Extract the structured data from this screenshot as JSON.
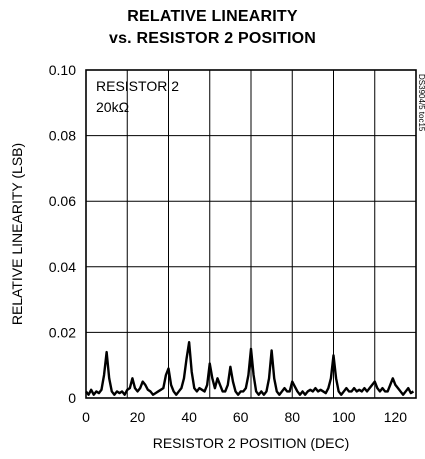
{
  "chart_data": {
    "type": "line",
    "title_line1": "RELATIVE LINEARITY",
    "title_line2": "vs. RESISTOR 2 POSITION",
    "xlabel": "RESISTOR 2 POSITION (DEC)",
    "ylabel": "RELATIVE LINEARITY (LSB)",
    "annotation_line1": "RESISTOR 2",
    "annotation_line2": "20kΩ",
    "figure_id": "DS3904/5 toc15",
    "xlim": [
      0,
      128
    ],
    "ylim": [
      0,
      0.1
    ],
    "x_ticks": [
      0,
      20,
      40,
      60,
      80,
      100,
      120
    ],
    "x_tick_labels": [
      "0",
      "20",
      "40",
      "60",
      "80",
      "100",
      "120"
    ],
    "y_ticks": [
      0,
      0.02,
      0.04,
      0.06,
      0.08,
      0.1
    ],
    "y_tick_labels": [
      "0",
      "0.02",
      "0.04",
      "0.06",
      "0.08",
      "0.10"
    ],
    "grid": true,
    "series_color": "#000000",
    "x": [
      0,
      1,
      2,
      3,
      4,
      5,
      6,
      7,
      8,
      9,
      10,
      11,
      12,
      13,
      14,
      15,
      16,
      17,
      18,
      19,
      20,
      21,
      22,
      23,
      24,
      25,
      26,
      27,
      28,
      29,
      30,
      31,
      32,
      33,
      34,
      35,
      36,
      37,
      38,
      39,
      40,
      41,
      42,
      43,
      44,
      45,
      46,
      47,
      48,
      49,
      50,
      51,
      52,
      53,
      54,
      55,
      56,
      57,
      58,
      59,
      60,
      61,
      62,
      63,
      64,
      65,
      66,
      67,
      68,
      69,
      70,
      71,
      72,
      73,
      74,
      75,
      76,
      77,
      78,
      79,
      80,
      81,
      82,
      83,
      84,
      85,
      86,
      87,
      88,
      89,
      90,
      91,
      92,
      93,
      94,
      95,
      96,
      97,
      98,
      99,
      100,
      101,
      102,
      103,
      104,
      105,
      106,
      107,
      108,
      109,
      110,
      111,
      112,
      113,
      114,
      115,
      116,
      117,
      118,
      119,
      120,
      121,
      122,
      123,
      124,
      125,
      126,
      127
    ],
    "y": [
      0.002,
      0.001,
      0.0025,
      0.001,
      0.002,
      0.0015,
      0.0025,
      0.007,
      0.014,
      0.006,
      0.002,
      0.001,
      0.002,
      0.0015,
      0.002,
      0.001,
      0.0025,
      0.003,
      0.006,
      0.003,
      0.002,
      0.003,
      0.005,
      0.004,
      0.0025,
      0.002,
      0.001,
      0.0015,
      0.002,
      0.0025,
      0.003,
      0.007,
      0.009,
      0.004,
      0.002,
      0.001,
      0.002,
      0.003,
      0.006,
      0.012,
      0.017,
      0.008,
      0.003,
      0.002,
      0.003,
      0.0025,
      0.002,
      0.004,
      0.0105,
      0.006,
      0.003,
      0.006,
      0.004,
      0.002,
      0.002,
      0.004,
      0.0095,
      0.005,
      0.002,
      0.001,
      0.002,
      0.002,
      0.003,
      0.007,
      0.015,
      0.007,
      0.002,
      0.001,
      0.002,
      0.001,
      0.002,
      0.006,
      0.0145,
      0.006,
      0.002,
      0.001,
      0.002,
      0.003,
      0.002,
      0.002,
      0.005,
      0.0035,
      0.002,
      0.001,
      0.002,
      0.001,
      0.002,
      0.0025,
      0.002,
      0.003,
      0.002,
      0.0025,
      0.002,
      0.0015,
      0.003,
      0.006,
      0.013,
      0.006,
      0.002,
      0.001,
      0.002,
      0.003,
      0.002,
      0.002,
      0.003,
      0.002,
      0.0025,
      0.002,
      0.003,
      0.002,
      0.003,
      0.004,
      0.005,
      0.003,
      0.002,
      0.003,
      0.002,
      0.002,
      0.004,
      0.006,
      0.004,
      0.003,
      0.002,
      0.001,
      0.002,
      0.003,
      0.0015,
      0.002
    ]
  }
}
